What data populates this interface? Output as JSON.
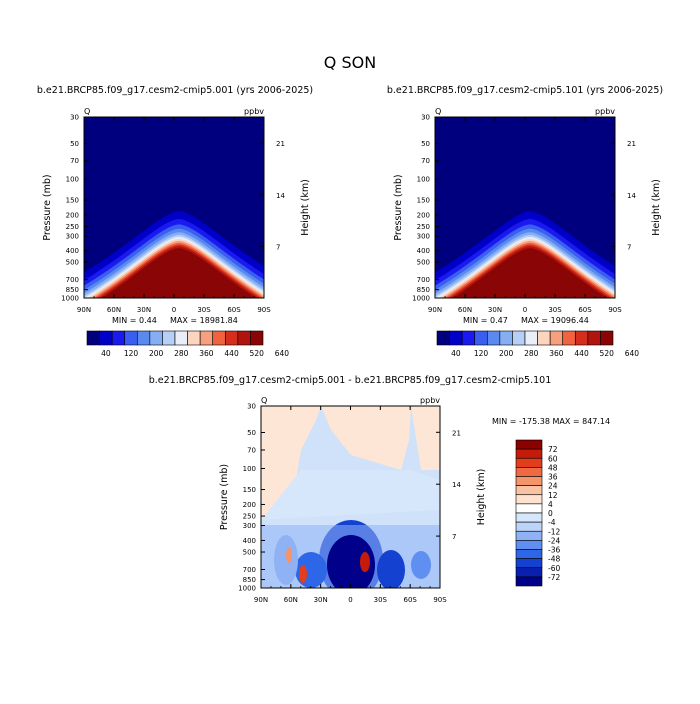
{
  "page": {
    "title": "Q SON"
  },
  "colors": {
    "top_scale": [
      "#00007f",
      "#0000c8",
      "#1a1af0",
      "#3a5ff0",
      "#5a8aef",
      "#86aef2",
      "#b7cff7",
      "#e9eef9",
      "#fcd5bf",
      "#f6a07e",
      "#f06240",
      "#d62e1c",
      "#b0150d",
      "#8a0505"
    ],
    "diff_scale": [
      "#00008a",
      "#0a1fb0",
      "#1541d1",
      "#2e66e8",
      "#5e8ff1",
      "#8fb2f5",
      "#bdd3fa",
      "#d6e6fb",
      "#ffffff",
      "#fde3cf",
      "#f9c2a3",
      "#f5946b",
      "#ef6a43",
      "#e23e1c",
      "#c41b0a",
      "#8c0000"
    ],
    "axis": "#000000"
  },
  "chart_data": [
    {
      "type": "heatmap",
      "title": "b.e21.BRCP85.f09_g17.cesm2-cmip5.001 (yrs 2006-2025)",
      "corner_left": "Q",
      "corner_right": "ppbv",
      "ylabel": "Pressure (mb)",
      "y2label": "Height (km)",
      "x_ticks": [
        "90N",
        "60N",
        "30N",
        "0",
        "30S",
        "60S",
        "90S"
      ],
      "x_values": [
        90,
        60,
        30,
        0,
        -30,
        -60,
        -90
      ],
      "y_ticks": [
        "30",
        "50",
        "70",
        "100",
        "150",
        "200",
        "250",
        "300",
        "400",
        "500",
        "700",
        "850",
        "1000"
      ],
      "y_values": [
        30,
        50,
        70,
        100,
        150,
        200,
        250,
        300,
        400,
        500,
        700,
        850,
        1000
      ],
      "y2_ticks": [
        "21",
        "14",
        "7"
      ],
      "y2_values": [
        21,
        14,
        7
      ],
      "ylim": [
        1000,
        30
      ],
      "y_scale": "log",
      "min_label": "MIN =    0.44",
      "max_label": "MAX =  18981.84",
      "colorbar_labels": [
        "40",
        "120",
        "200",
        "280",
        "360",
        "440",
        "520",
        "640"
      ],
      "colorbar_levels": [
        20,
        40,
        80,
        120,
        160,
        200,
        240,
        280,
        320,
        360,
        400,
        440,
        480,
        520,
        640
      ]
    },
    {
      "type": "heatmap",
      "title": "b.e21.BRCP85.f09_g17.cesm2-cmip5.101 (yrs 2006-2025)",
      "corner_left": "Q",
      "corner_right": "ppbv",
      "ylabel": "Pressure (mb)",
      "y2label": "Height (km)",
      "x_ticks": [
        "90N",
        "60N",
        "30N",
        "0",
        "30S",
        "60S",
        "90S"
      ],
      "x_values": [
        90,
        60,
        30,
        0,
        -30,
        -60,
        -90
      ],
      "y_ticks": [
        "30",
        "50",
        "70",
        "100",
        "150",
        "200",
        "250",
        "300",
        "400",
        "500",
        "700",
        "850",
        "1000"
      ],
      "y_values": [
        30,
        50,
        70,
        100,
        150,
        200,
        250,
        300,
        400,
        500,
        700,
        850,
        1000
      ],
      "y2_ticks": [
        "21",
        "14",
        "7"
      ],
      "y2_values": [
        21,
        14,
        7
      ],
      "ylim": [
        1000,
        30
      ],
      "y_scale": "log",
      "min_label": "MIN =    0.47",
      "max_label": "MAX =  19096.44",
      "colorbar_labels": [
        "40",
        "120",
        "200",
        "280",
        "360",
        "440",
        "520",
        "640"
      ],
      "colorbar_levels": [
        20,
        40,
        80,
        120,
        160,
        200,
        240,
        280,
        320,
        360,
        400,
        440,
        480,
        520,
        640
      ]
    },
    {
      "type": "heatmap",
      "title": "b.e21.BRCP85.f09_g17.cesm2-cmip5.001 - b.e21.BRCP85.f09_g17.cesm2-cmip5.101",
      "corner_left": "Q",
      "corner_right": "ppbv",
      "ylabel": "Pressure (mb)",
      "y2label": "Height (km)",
      "x_ticks": [
        "90N",
        "60N",
        "30N",
        "0",
        "30S",
        "60S",
        "90S"
      ],
      "x_values": [
        90,
        60,
        30,
        0,
        -30,
        -60,
        -90
      ],
      "y_ticks": [
        "30",
        "50",
        "70",
        "100",
        "150",
        "200",
        "250",
        "300",
        "400",
        "500",
        "700",
        "850",
        "1000"
      ],
      "y_values": [
        30,
        50,
        70,
        100,
        150,
        200,
        250,
        300,
        400,
        500,
        700,
        850,
        1000
      ],
      "y2_ticks": [
        "21",
        "14",
        "7"
      ],
      "y2_values": [
        21,
        14,
        7
      ],
      "ylim": [
        1000,
        30
      ],
      "y_scale": "log",
      "minmax_label": "MIN = -175.38   MAX = 847.14",
      "colorbar_labels": [
        "72",
        "60",
        "48",
        "36",
        "24",
        "12",
        "4",
        "0",
        "-4",
        "-12",
        "-24",
        "-36",
        "-48",
        "-60",
        "-72"
      ],
      "colorbar_levels": [
        72,
        60,
        48,
        36,
        24,
        12,
        4,
        0,
        -4,
        -12,
        -24,
        -36,
        -48,
        -60,
        -72
      ]
    }
  ]
}
